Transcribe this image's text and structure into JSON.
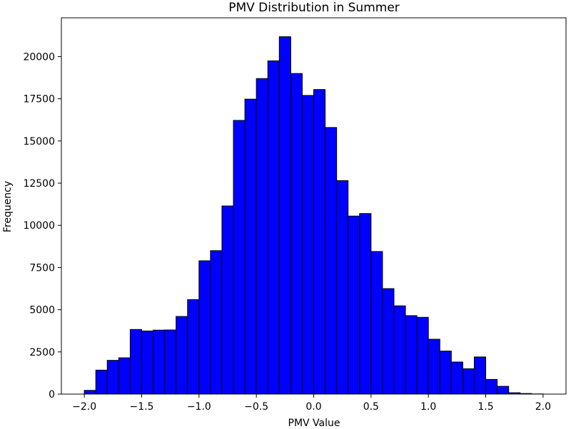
{
  "chart_data": {
    "type": "bar",
    "title": "PMV Distribution in Summer",
    "xlabel": "PMV Value",
    "ylabel": "Frequency",
    "xlim": [
      -2.2,
      2.2
    ],
    "ylim": [
      0,
      22300
    ],
    "xticks": [
      -2.0,
      -1.5,
      -1.0,
      -0.5,
      0.0,
      0.5,
      1.0,
      1.5,
      2.0
    ],
    "xtick_labels": [
      "−2.0",
      "−1.5",
      "−1.0",
      "−0.5",
      "0.0",
      "0.5",
      "1.0",
      "1.5",
      "2.0"
    ],
    "yticks": [
      0,
      2500,
      5000,
      7500,
      10000,
      12500,
      15000,
      17500,
      20000
    ],
    "ytick_labels": [
      "0",
      "2500",
      "5000",
      "7500",
      "10000",
      "12500",
      "15000",
      "17500",
      "20000"
    ],
    "bar_color": "#0000ff",
    "edge_color": "#000000",
    "bins": {
      "start": -2.0,
      "width": 0.1,
      "values": [
        220,
        1420,
        2000,
        2150,
        3830,
        3740,
        3790,
        3800,
        4600,
        5600,
        7900,
        8500,
        11150,
        16220,
        17480,
        18700,
        19750,
        21180,
        19000,
        17700,
        18050,
        15800,
        12650,
        10550,
        10700,
        8450,
        6250,
        5230,
        4650,
        4550,
        3250,
        2550,
        1900,
        1500,
        2200,
        870,
        460,
        80,
        35,
        10
      ]
    },
    "grid": false,
    "legend": "none"
  }
}
